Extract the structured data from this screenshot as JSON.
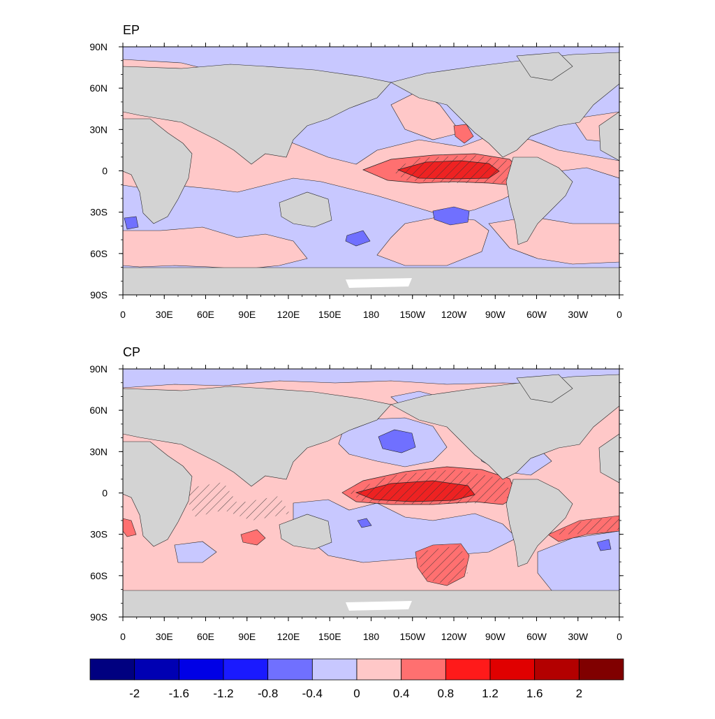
{
  "panels": [
    {
      "title": "EP"
    },
    {
      "title": "CP"
    }
  ],
  "axes": {
    "lat_labels": [
      "90N",
      "60N",
      "30N",
      "0",
      "30S",
      "60S",
      "90S"
    ],
    "lon_labels": [
      "0",
      "30E",
      "60E",
      "90E",
      "120E",
      "150E",
      "180",
      "150W",
      "120W",
      "90W",
      "60W",
      "30W",
      "0"
    ]
  },
  "colorbar": {
    "labels": [
      "-2",
      "-1.6",
      "-1.2",
      "-0.8",
      "-0.4",
      "0",
      "0.4",
      "0.8",
      "1.2",
      "1.6",
      "2"
    ],
    "colors": [
      "#000080",
      "#0000b3",
      "#0000e6",
      "#1a1aff",
      "#7070ff",
      "#c8c8ff",
      "#ffc8c8",
      "#ff7070",
      "#ff1a1a",
      "#e00000",
      "#b30000",
      "#800000"
    ]
  },
  "colors": {
    "land": "#d3d3d3",
    "neg_weak": "#c8c8ff",
    "neg_mid": "#7070ff",
    "neg_strong": "#3333ee",
    "pos_weak": "#ffc8c8",
    "pos_mid": "#ff7070",
    "pos_strong": "#ee2222"
  }
}
